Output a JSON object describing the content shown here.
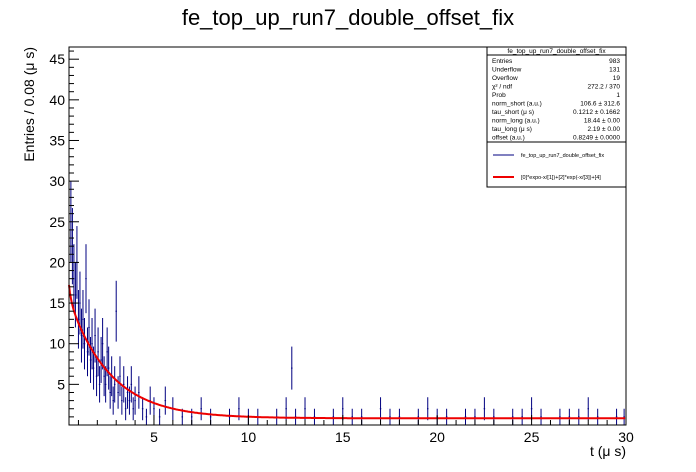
{
  "chart_data": {
    "type": "histogram",
    "title": "fe_top_up_run7_double_offset_fix",
    "xlabel": "t (μ s)",
    "ylabel": "Entries / 0.08 (μ s)",
    "xlim": [
      0.5,
      30
    ],
    "ylim": [
      0,
      46.5
    ],
    "xticks": [
      5,
      10,
      15,
      20,
      25,
      30
    ],
    "yticks": [
      0,
      5,
      10,
      15,
      20,
      25,
      30,
      35,
      40,
      45
    ],
    "bin_width": 0.08,
    "grid": false,
    "stats_box": {
      "title": "fe_top_up_run7_double_offset_fix",
      "rows": [
        {
          "label": "Entries",
          "value": "983"
        },
        {
          "label": "Underflow",
          "value": "131"
        },
        {
          "label": "Overflow",
          "value": "19"
        },
        {
          "label": "χ² / ndf",
          "value": "272.2 / 370"
        },
        {
          "label": "Prob",
          "value": "1"
        },
        {
          "label": "norm_short (a.u.)",
          "value": "106.6 ± 312.6"
        },
        {
          "label": "tau_short (μ s)",
          "value": "0.1212 ± 0.1662"
        },
        {
          "label": "norm_long (a.u.)",
          "value": "18.44 ± 0.00"
        },
        {
          "label": "tau_long (μ s)",
          "value": "2.19 ± 0.00"
        },
        {
          "label": "offset (a.u.)",
          "value": "0.8249 ± 0.0000"
        }
      ]
    },
    "legend": [
      {
        "label": "fe_top_up_run7_double_offset_fix",
        "color": "#000080"
      },
      {
        "label": "[0]*expo-x/[1])+[2]*exp(-x/[3])+[4]",
        "color": "#ee0000"
      }
    ],
    "fit": {
      "name": "[0]*expo-x/[1])+[2]*exp(-x/[3])+[4]",
      "color": "#ee0000",
      "norm_short": 106.6,
      "tau_short": 0.1212,
      "norm_long": 18.44,
      "tau_long": 2.19,
      "offset": 0.8249
    },
    "series": [
      {
        "name": "fe_top_up_run7_double_offset_fix",
        "color": "#000080",
        "x": [
          0.6,
          0.68,
          0.76,
          0.84,
          0.92,
          1.0,
          1.08,
          1.16,
          1.24,
          1.32,
          1.4,
          1.48,
          1.56,
          1.64,
          1.72,
          1.8,
          1.88,
          1.96,
          2.04,
          2.12,
          2.2,
          2.28,
          2.36,
          2.44,
          2.52,
          2.6,
          2.68,
          2.76,
          2.84,
          2.92,
          3.0,
          3.1,
          3.2,
          3.3,
          3.4,
          3.5,
          3.6,
          3.7,
          3.8,
          3.9,
          4.0,
          4.2,
          4.4,
          4.6,
          4.8,
          5.0,
          5.3,
          5.6,
          6.0,
          6.5,
          7.0,
          7.5,
          8.0,
          8.5,
          9.0,
          9.5,
          10.0,
          10.5,
          11.0,
          11.5,
          12.0,
          12.3,
          12.5,
          13.0,
          13.5,
          14.0,
          14.5,
          15.0,
          15.5,
          16.0,
          16.5,
          17.0,
          17.5,
          18.0,
          18.5,
          19.0,
          19.5,
          20.0,
          20.5,
          21.0,
          21.5,
          22.0,
          22.5,
          23.0,
          23.5,
          24.0,
          24.5,
          25.0,
          25.5,
          26.0,
          26.5,
          27.0,
          27.5,
          28.0,
          28.5,
          29.0,
          29.5,
          29.9
        ],
        "y": [
          25,
          22,
          18,
          16,
          20,
          13,
          15,
          11,
          13,
          10,
          18,
          9,
          12,
          8,
          10,
          7,
          11,
          6,
          9,
          5,
          8,
          10,
          6,
          5,
          9,
          7,
          4,
          6,
          3,
          5,
          14,
          4,
          6,
          3,
          5,
          2,
          4,
          3,
          5,
          2,
          3,
          4,
          2,
          1,
          3,
          2,
          1,
          3,
          2,
          1,
          1,
          2,
          1,
          0,
          1,
          2,
          1,
          1,
          0,
          1,
          2,
          7,
          1,
          2,
          1,
          0,
          1,
          2,
          1,
          1,
          0,
          2,
          1,
          1,
          0,
          1,
          2,
          1,
          1,
          0,
          1,
          1,
          2,
          1,
          0,
          1,
          1,
          2,
          1,
          0,
          1,
          1,
          1,
          2,
          1,
          0,
          1,
          1
        ]
      }
    ]
  }
}
